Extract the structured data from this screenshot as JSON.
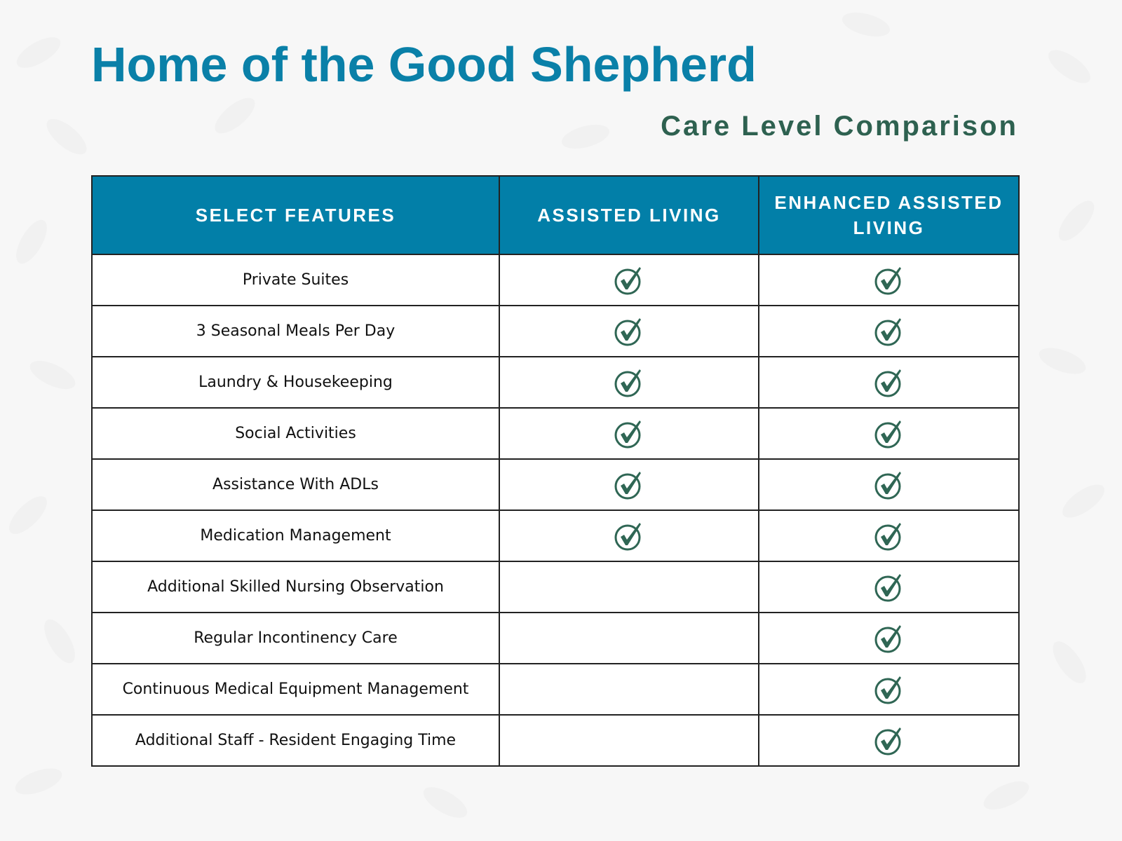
{
  "header": {
    "title": "Home of the Good Shepherd",
    "subtitle": "Care Level Comparison"
  },
  "colors": {
    "title": "#0a80a8",
    "subtitle": "#2e6150",
    "table_header": "#027fa8",
    "check": "#2f6654"
  },
  "table": {
    "columns": [
      "SELECT FEATURES",
      "ASSISTED LIVING",
      "ENHANCED ASSISTED LIVING"
    ],
    "check_icon": "check-circle-icon",
    "rows": [
      {
        "feature": "Private Suites",
        "assisted_living": true,
        "enhanced_assisted_living": true
      },
      {
        "feature": "3 Seasonal Meals Per Day",
        "assisted_living": true,
        "enhanced_assisted_living": true
      },
      {
        "feature": "Laundry & Housekeeping",
        "assisted_living": true,
        "enhanced_assisted_living": true
      },
      {
        "feature": "Social Activities",
        "assisted_living": true,
        "enhanced_assisted_living": true
      },
      {
        "feature": "Assistance With ADLs",
        "assisted_living": true,
        "enhanced_assisted_living": true
      },
      {
        "feature": "Medication Management",
        "assisted_living": true,
        "enhanced_assisted_living": true
      },
      {
        "feature": "Additional Skilled Nursing Observation",
        "assisted_living": false,
        "enhanced_assisted_living": true
      },
      {
        "feature": "Regular Incontinency Care",
        "assisted_living": false,
        "enhanced_assisted_living": true
      },
      {
        "feature": "Continuous Medical Equipment Management",
        "assisted_living": false,
        "enhanced_assisted_living": true
      },
      {
        "feature": "Additional Staff - Resident Engaging Time",
        "assisted_living": false,
        "enhanced_assisted_living": true
      }
    ]
  }
}
